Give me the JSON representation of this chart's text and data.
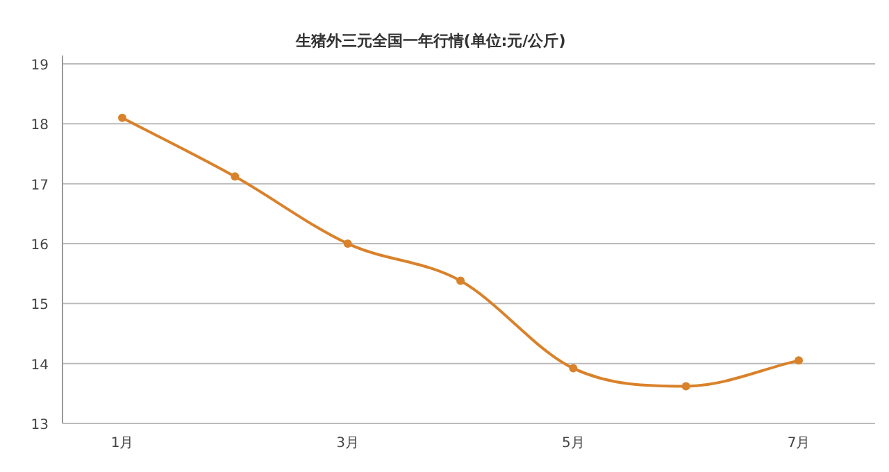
{
  "chart_data": {
    "type": "line",
    "title": "生猪外三元全国一年行情(单位:元/公斤)",
    "categories": [
      "1月",
      null,
      "3月",
      null,
      "5月",
      null,
      "7月"
    ],
    "values": [
      18.1,
      17.12,
      16.0,
      15.38,
      13.92,
      13.62,
      14.05
    ],
    "color": "#d9822b",
    "ylim": [
      13,
      19
    ],
    "yticks": [
      13,
      14,
      15,
      16,
      17,
      18,
      19
    ],
    "grid": "y",
    "marker": "circle"
  }
}
